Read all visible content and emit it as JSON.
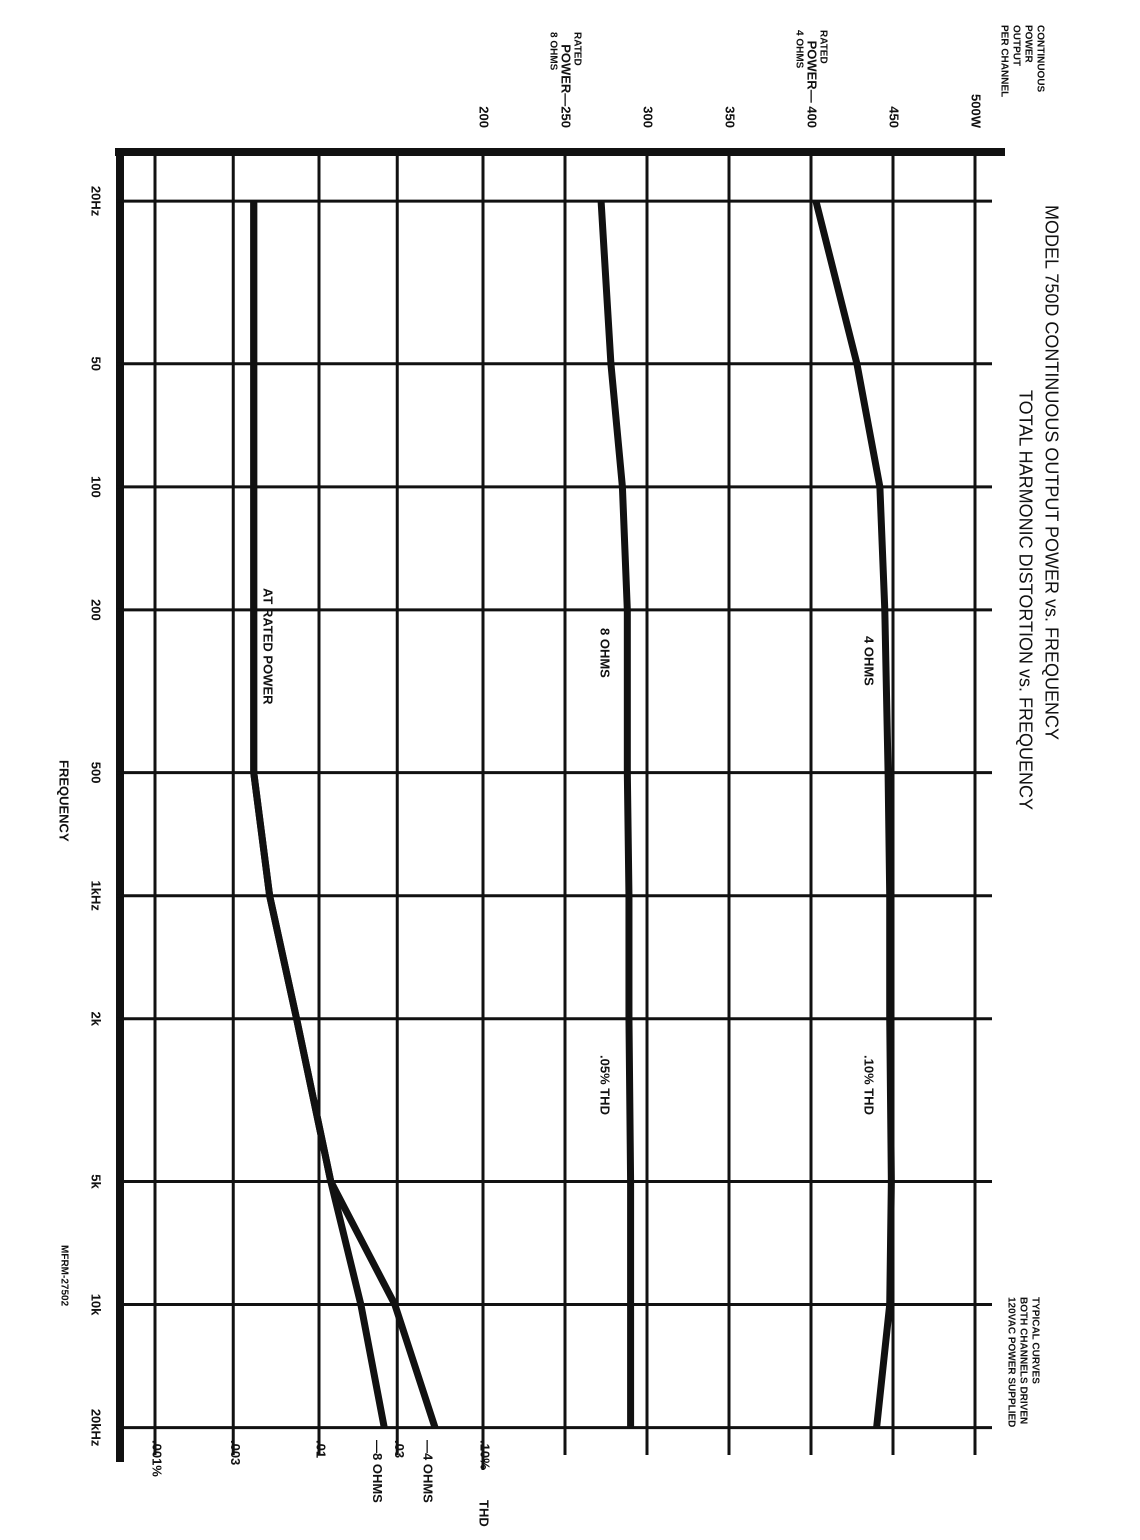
{
  "chart_data": {
    "type": "line",
    "title": "MODEL 750D   CONTINUOUS OUTPUT POWER vs. FREQUENCY",
    "subtitle": "TOTAL HARMONIC DISTORTION vs. FREQUENCY",
    "y_label": [
      "CONTINUOUS",
      "POWER",
      "OUTPUT",
      "PER CHANNEL"
    ],
    "x_label": "FREQUENCY",
    "annotations": {
      "rated_4": [
        "RATED",
        "4 OHMS"
      ],
      "rated_8": [
        "RATED",
        "8 OHMS"
      ],
      "at_rated_power": "AT RATED POWER",
      "thd_4": ".10% THD",
      "thd_8": ".05% THD",
      "thd_axis": "THD",
      "note": [
        "TYPICAL CURVES",
        "BOTH CHANNELS DRIVEN",
        "120VAC POWER SUPPLIED"
      ],
      "code": "MFRM-27502"
    },
    "x": [
      20,
      50,
      100,
      200,
      500,
      1000,
      2000,
      5000,
      10000,
      20000
    ],
    "xlim": [
      15,
      24000
    ],
    "log_x": true,
    "xticks": [
      {
        "value": 20,
        "label": "20Hz"
      },
      50,
      100,
      200,
      500,
      {
        "value": 1000,
        "label": "1kHz"
      },
      {
        "value": 2000,
        "label": "2k"
      },
      {
        "value": 5000,
        "label": "5k"
      },
      {
        "value": 10000,
        "label": "10k"
      },
      {
        "value": 20000,
        "label": "20kHz"
      }
    ],
    "ylim": [
      200,
      500
    ],
    "yticks": [
      {
        "value": 500,
        "label": "500W"
      },
      450,
      {
        "value": 400,
        "label": "POWER— 400"
      },
      350,
      300,
      {
        "value": 250,
        "label": "POWER—250"
      },
      200
    ],
    "y2lim": [
      0.001,
      0.1
    ],
    "log_y2": true,
    "y2ticks": [
      {
        "value": 0.1,
        "label": ".10%"
      },
      {
        "value": 0.03,
        "label": ".03"
      },
      {
        "value": 0.01,
        "label": ".01"
      },
      {
        "value": 0.003,
        "label": ".003"
      },
      {
        "value": 0.001,
        "label": ".001%"
      }
    ],
    "grid": true,
    "series": [
      {
        "name": "4 OHMS",
        "color": "#111111",
        "values": [
          403,
          428,
          442,
          445,
          447,
          448,
          448,
          449,
          448,
          440
        ]
      },
      {
        "name": "8 OHMS",
        "color": "#111111",
        "values": [
          272,
          278,
          285,
          288,
          288,
          289,
          289,
          290,
          290,
          290
        ]
      },
      {
        "name": "—4 OHMS",
        "color": "#111111",
        "axis": "y2",
        "values": [
          0.004,
          0.004,
          0.004,
          0.004,
          0.004,
          0.005,
          0.0073,
          0.0118,
          0.029,
          0.051
        ]
      },
      {
        "name": "—8 OHMS",
        "color": "#111111",
        "axis": "y2",
        "values": [
          0.004,
          0.004,
          0.004,
          0.004,
          0.004,
          0.005,
          0.0073,
          0.0118,
          0.018,
          0.025
        ]
      }
    ]
  }
}
